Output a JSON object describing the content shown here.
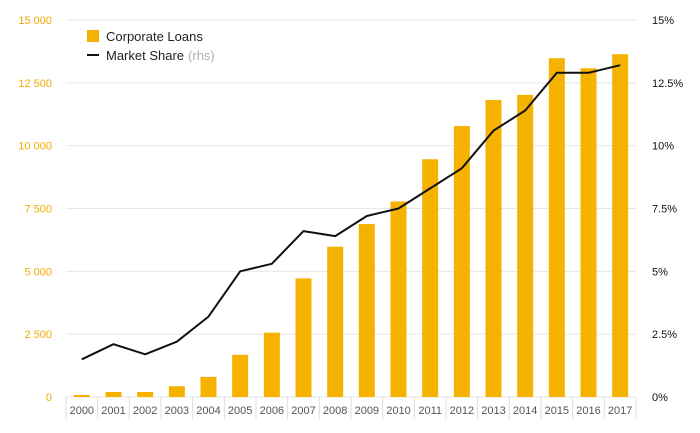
{
  "chart_data": {
    "type": "bar",
    "categories": [
      "2000",
      "2001",
      "2002",
      "2003",
      "2004",
      "2005",
      "2006",
      "2007",
      "2008",
      "2009",
      "2010",
      "2011",
      "2012",
      "2013",
      "2014",
      "2015",
      "2016",
      "2017"
    ],
    "series": [
      {
        "name": "Corporate Loans",
        "type": "bar",
        "axis": "left",
        "color": "#f5b300",
        "values": [
          80,
          200,
          200,
          430,
          800,
          1680,
          2560,
          4720,
          5980,
          6880,
          7780,
          9460,
          10780,
          11820,
          12020,
          13480,
          13080,
          13640
        ]
      },
      {
        "name": "Market Share",
        "note": "(rhs)",
        "type": "line",
        "axis": "right",
        "color": "#111111",
        "values": [
          1.5,
          2.1,
          1.7,
          2.2,
          3.2,
          5.0,
          5.3,
          6.6,
          6.4,
          7.2,
          7.5,
          8.3,
          9.1,
          10.6,
          11.4,
          12.9,
          12.9,
          13.2
        ]
      }
    ],
    "left_axis": {
      "ticks": [
        "0",
        "2 500",
        "5 000",
        "7 500",
        "10 000",
        "12 500",
        "15 000"
      ],
      "min": 0,
      "max": 15000
    },
    "right_axis": {
      "ticks": [
        "0%",
        "2.5%",
        "5%",
        "7.5%",
        "10%",
        "12.5%",
        "15%"
      ],
      "min": 0,
      "max": 15
    },
    "legend": {
      "placement": "top-left",
      "note_color": "#b0b0b0"
    },
    "grid": true
  }
}
